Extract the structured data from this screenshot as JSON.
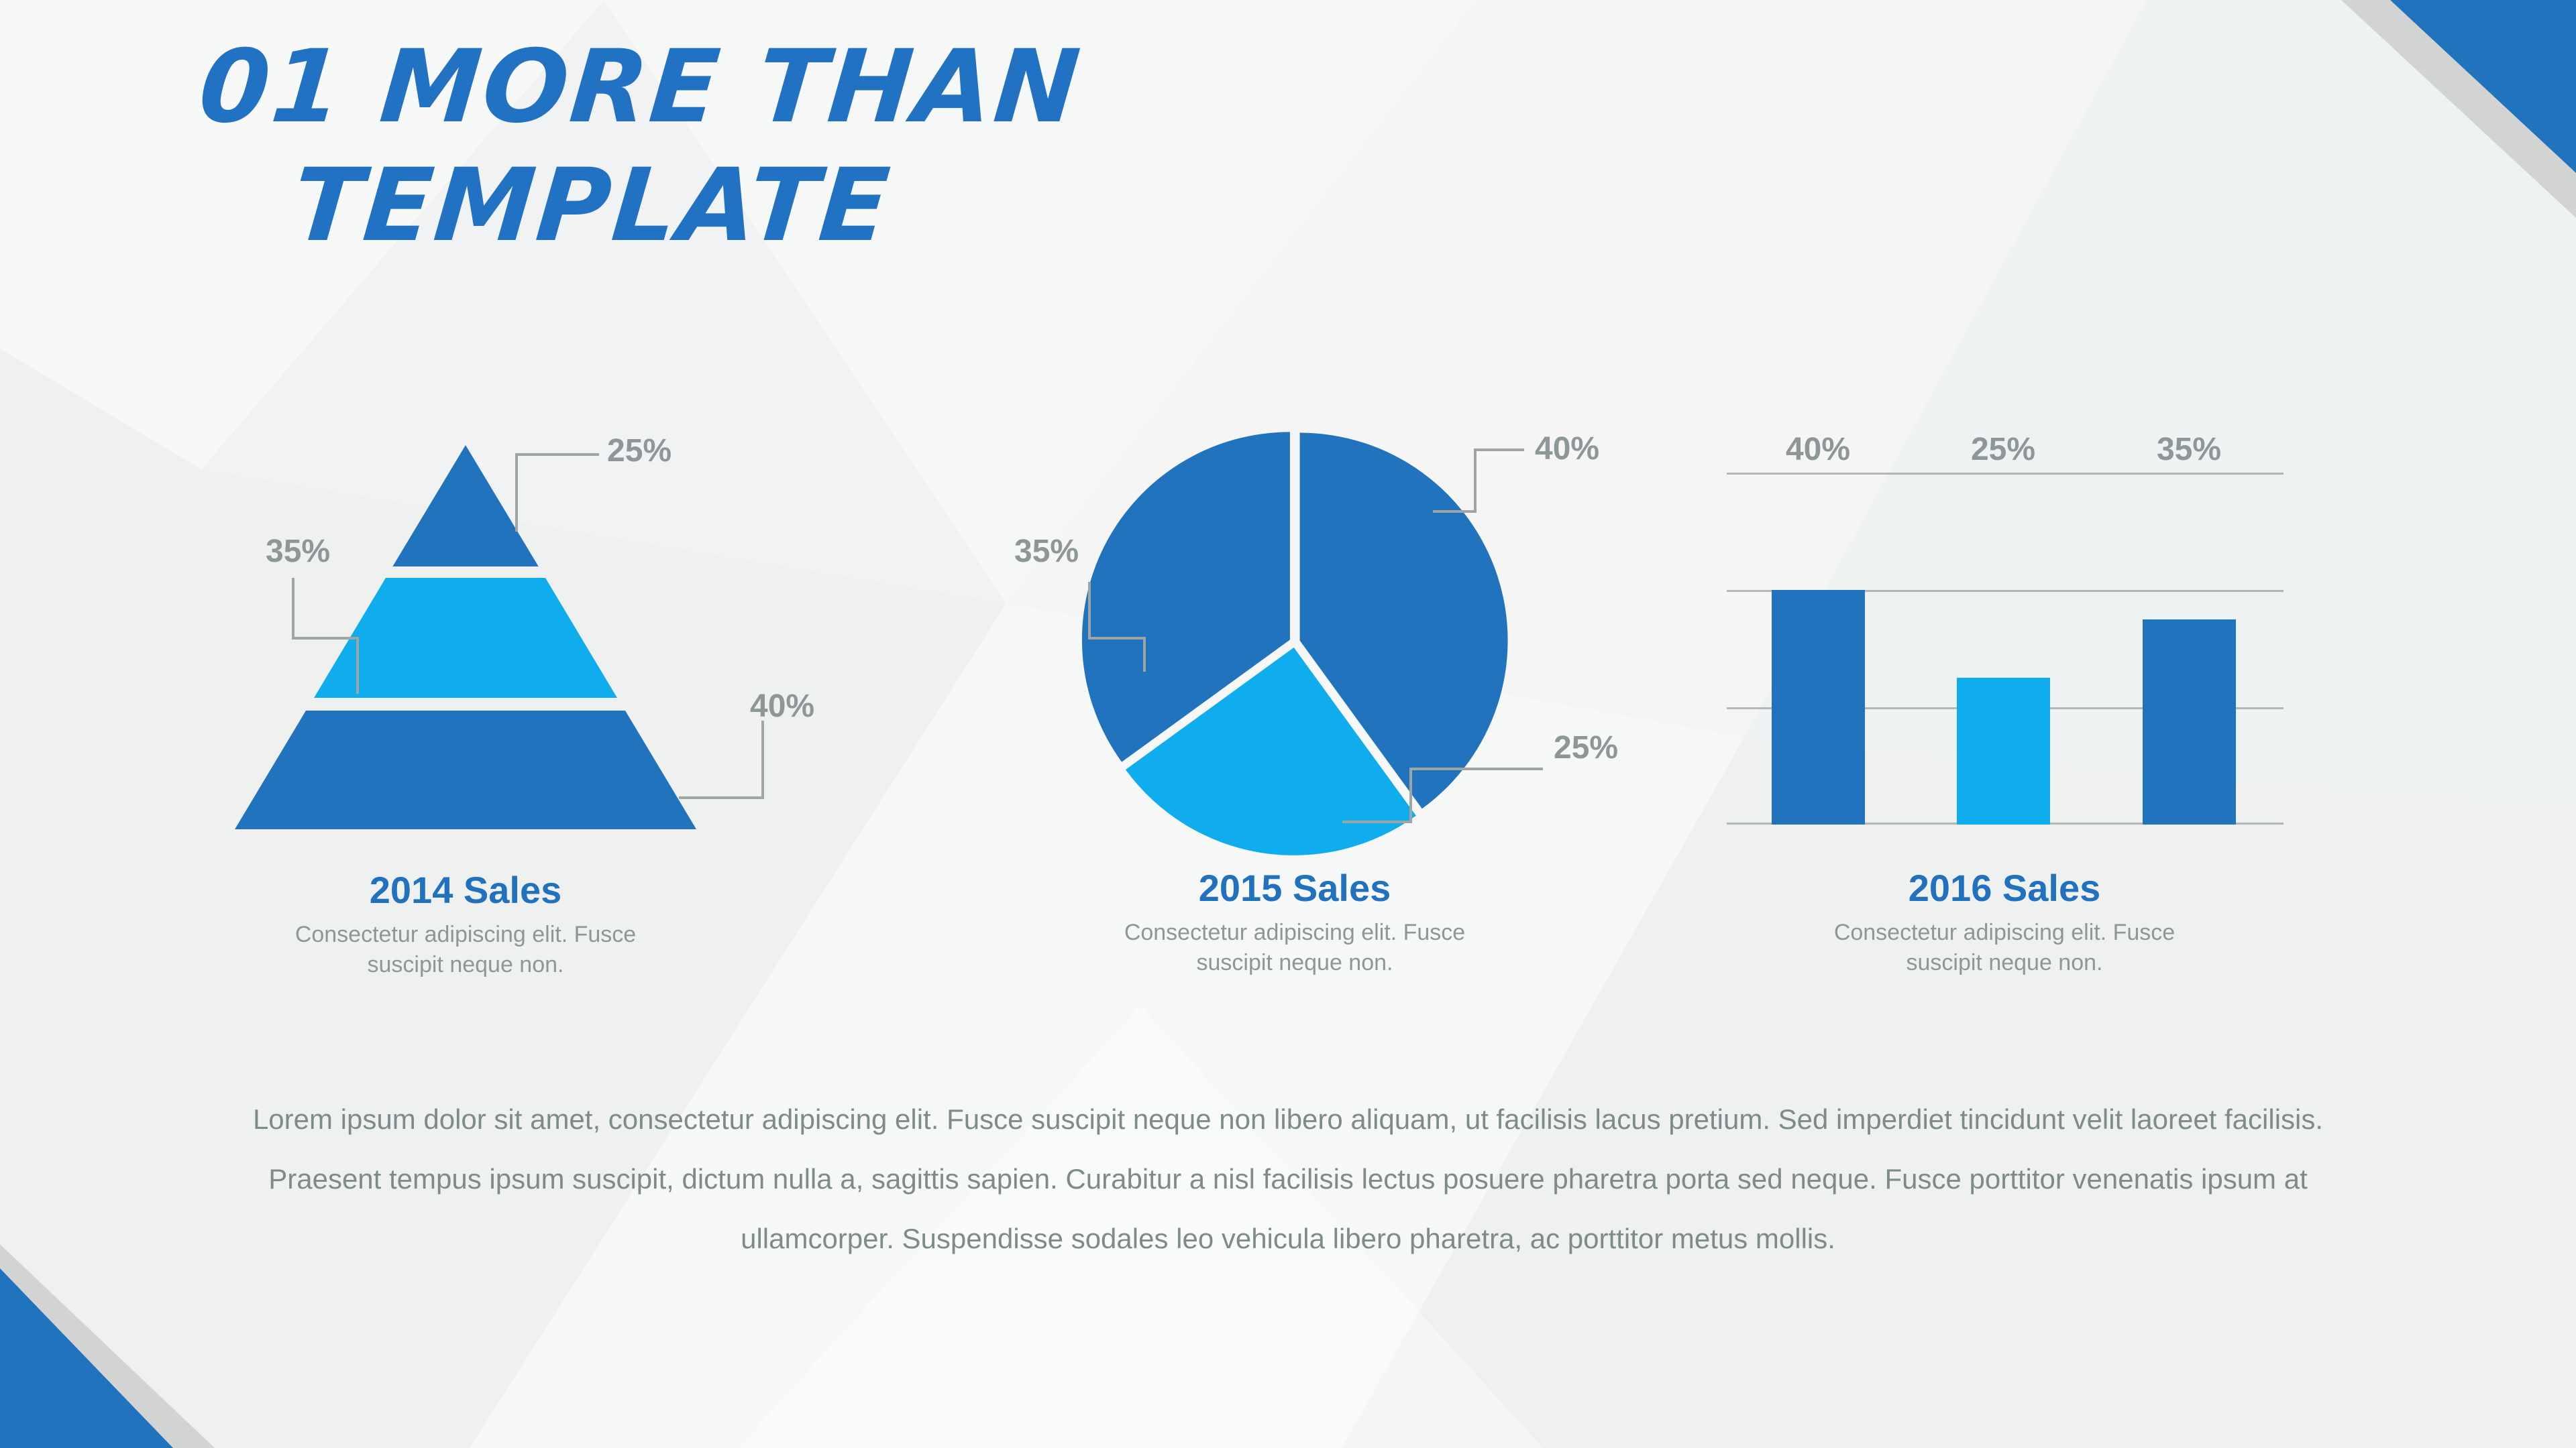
{
  "title": {
    "line1": "01 MORE THAN",
    "line2": "TEMPLATE"
  },
  "colors": {
    "accent_dark": "#2173BE",
    "accent_light": "#0FACEE",
    "title_blue": "#2272C4",
    "caption_blue": "#2271BE",
    "label_gray": "#8D9797",
    "body_gray": "#7E8B8B",
    "connector_gray": "#9FA5A5",
    "corner_gray": "#D2D4D4",
    "background": "#F1F2F3"
  },
  "chart_data": [
    {
      "type": "pyramid",
      "title": "2014 Sales",
      "subtitle": "Consectetur adipiscing elit. Fusce suscipit neque non.",
      "categories": [
        "top",
        "middle",
        "bottom"
      ],
      "values": [
        25,
        35,
        40
      ],
      "labels": [
        "25%",
        "35%",
        "40%"
      ],
      "colors": [
        "#2173BE",
        "#0FACEE",
        "#2173BE"
      ],
      "legend_position": "callout-lines"
    },
    {
      "type": "pie",
      "title": "2015 Sales",
      "subtitle": "Consectetur adipiscing elit. Fusce suscipit neque non.",
      "categories": [
        "right",
        "bottom",
        "left"
      ],
      "values": [
        40,
        25,
        35
      ],
      "labels": [
        "40%",
        "25%",
        "35%"
      ],
      "colors": [
        "#2173BE",
        "#0FACEE",
        "#2173BE"
      ],
      "start_angle_deg": 0,
      "direction": "clockwise",
      "exploded": true,
      "legend_position": "callout-lines"
    },
    {
      "type": "bar",
      "title": "2016 Sales",
      "subtitle": "Consectetur adipiscing elit. Fusce suscipit neque non.",
      "categories": [
        "bar1",
        "bar2",
        "bar3"
      ],
      "values": [
        40,
        25,
        35
      ],
      "labels": [
        "40%",
        "25%",
        "35%"
      ],
      "colors": [
        "#2173BE",
        "#0FACEE",
        "#2173BE"
      ],
      "ylim": [
        0,
        60
      ],
      "gridlines": [
        0,
        20,
        40,
        60
      ],
      "grid": true,
      "legend_position": "labels-above-bars"
    }
  ],
  "body": {
    "lines": [
      "Lorem ipsum dolor sit amet, consectetur adipiscing elit. Fusce suscipit neque non libero aliquam, ut facilisis lacus pretium. Sed imperdiet tincidunt velit laoreet facilisis.",
      "Praesent tempus ipsum suscipit, dictum nulla a, sagittis sapien. Curabitur a nisl facilisis lectus posuere pharetra porta sed neque. Fusce porttitor venenatis ipsum at",
      "ullamcorper. Suspendisse sodales leo vehicula libero pharetra, ac porttitor metus mollis."
    ]
  }
}
